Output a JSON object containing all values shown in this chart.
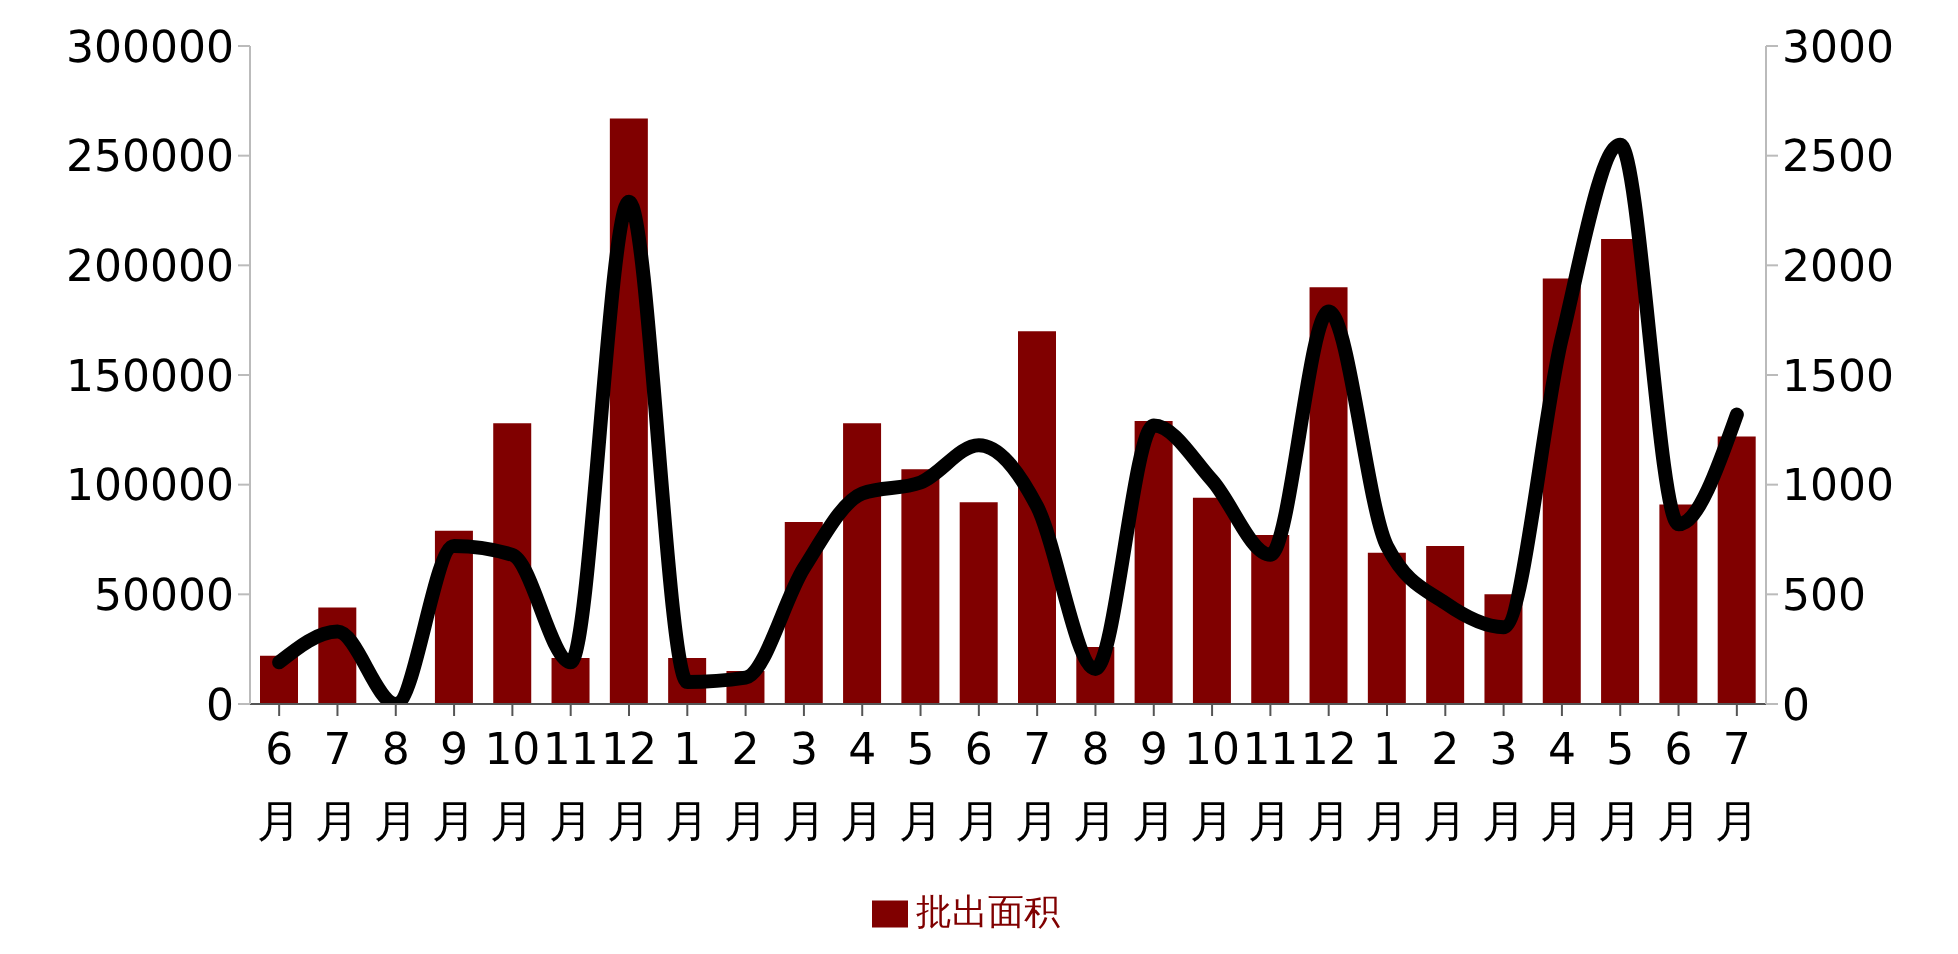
{
  "chart_data": {
    "type": "bar",
    "categories": [
      "6月",
      "7月",
      "8月",
      "9月",
      "10月",
      "11月",
      "12月",
      "1月",
      "2月",
      "3月",
      "4月",
      "5月",
      "6月",
      "7月",
      "8月",
      "9月",
      "10月",
      "11月",
      "12月",
      "1月",
      "2月",
      "3月",
      "4月",
      "5月",
      "6月",
      "7月"
    ],
    "series": [
      {
        "name": "批出面积",
        "color": "#800000",
        "values": [
          22000,
          44000,
          0,
          79000,
          128000,
          21000,
          267000,
          21000,
          15000,
          83000,
          128000,
          107000,
          92000,
          170000,
          26000,
          129000,
          94000,
          77000,
          190000,
          69000,
          72000,
          50000,
          194000,
          212000,
          91000,
          122000
        ]
      },
      {
        "type": "line",
        "axis": "y2",
        "color": "#000000",
        "values": [
          190,
          330,
          0,
          720,
          680,
          190,
          2290,
          100,
          120,
          620,
          960,
          1010,
          1180,
          900,
          160,
          1270,
          1020,
          680,
          1790,
          720,
          460,
          350,
          1670,
          2550,
          820,
          1320
        ]
      }
    ],
    "ylim": [
      0,
      300000
    ],
    "yticks": [
      0,
      50000,
      100000,
      150000,
      200000,
      250000,
      300000
    ],
    "y2lim": [
      0,
      3000
    ],
    "y2ticks": [
      0,
      500,
      1000,
      1500,
      2000,
      2500,
      3000
    ],
    "grid": false,
    "legend": "bottom",
    "marker": "none",
    "line_style": "solid"
  }
}
